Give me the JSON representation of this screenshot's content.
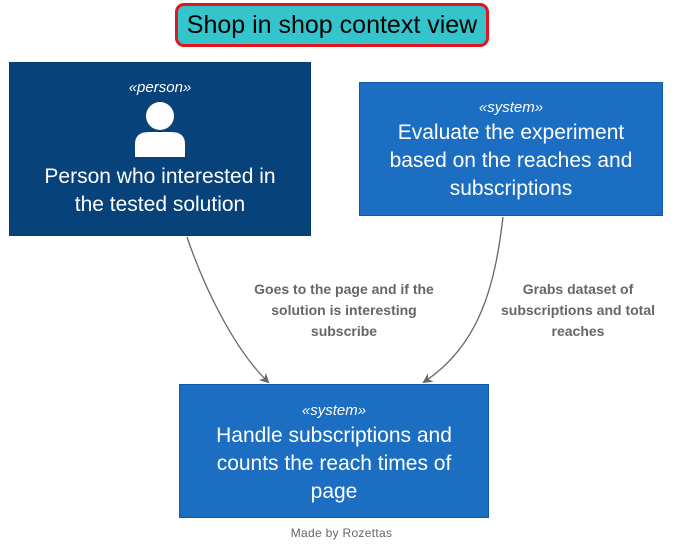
{
  "diagram": {
    "title": "Shop in shop context view",
    "nodes": {
      "person": {
        "stereotype": "«person»",
        "label_line1": "Person who interested in",
        "label_line2": "the tested solution",
        "icon": "person-icon"
      },
      "evaluate": {
        "stereotype": "«system»",
        "label_line1": "Evaluate the experiment",
        "label_line2": "based on the reaches and",
        "label_line3": "subscriptions"
      },
      "handle": {
        "stereotype": "«system»",
        "label_line1": "Handle subscriptions and",
        "label_line2": "counts the reach times of",
        "label_line3": "page"
      }
    },
    "edges": {
      "person_to_handle": {
        "line1": "Goes to the page and if the",
        "line2": "solution is interesting",
        "line3": "subscribe"
      },
      "evaluate_to_handle": {
        "line1": "Grabs dataset of",
        "line2": "subscriptions and total",
        "line3": "reaches"
      }
    },
    "footer": "Made by Rozettas",
    "colors": {
      "title_fill": "#33c4cc",
      "title_border": "#e3141e",
      "person_fill": "#08427b",
      "system_fill": "#1b6ec2",
      "edge_color": "#666666"
    }
  }
}
